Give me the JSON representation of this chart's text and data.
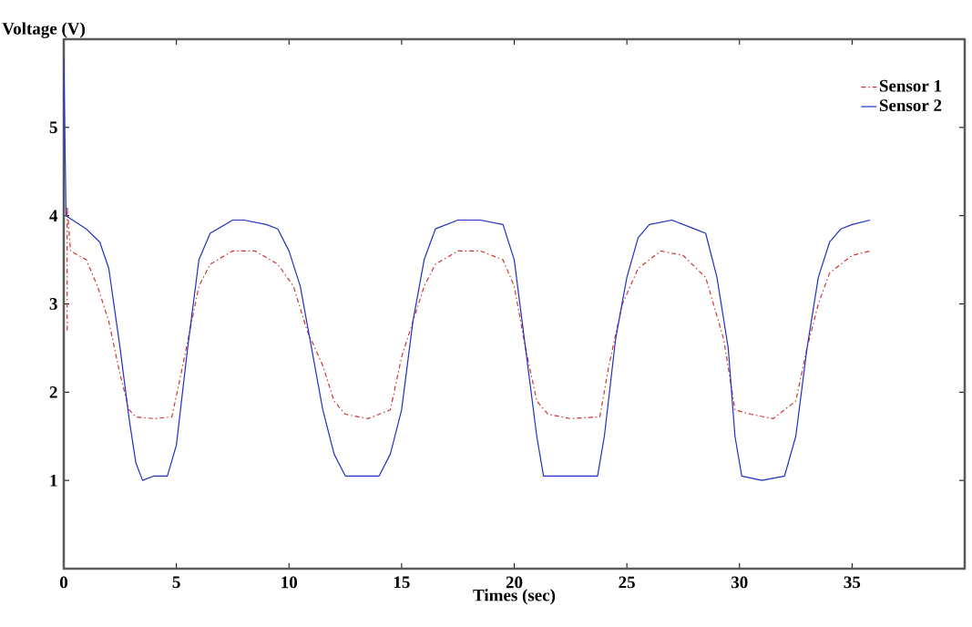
{
  "chart_data": {
    "type": "line",
    "xlabel": "Times (sec)",
    "ylabel": "Voltage (V)",
    "xlim": [
      0,
      40
    ],
    "ylim": [
      0,
      6
    ],
    "xticks": [
      0,
      5,
      10,
      15,
      20,
      25,
      30,
      35
    ],
    "yticks": [
      1,
      2,
      3,
      4,
      5
    ],
    "legend": "top right",
    "grid": false,
    "marker": "none",
    "series": [
      {
        "name": "Sensor 1",
        "color": "#d03030",
        "line_style": "dashdot",
        "x": [
          0.15,
          0.15,
          0.3,
          1,
          1.5,
          2,
          2.5,
          2.9,
          3.2,
          4,
          4.8,
          5.2,
          5.6,
          6,
          6.5,
          7.5,
          8.5,
          9.5,
          10.2,
          10.8,
          11.5,
          12,
          12.5,
          13.5,
          14.5,
          15,
          15.5,
          16,
          16.5,
          17.5,
          18.5,
          19.5,
          20,
          20.5,
          21,
          21.5,
          22.5,
          23.8,
          24.2,
          24.8,
          25.5,
          26.5,
          27.5,
          28.5,
          29.3,
          29.8,
          30.5,
          31.5,
          32.5,
          33,
          33.5,
          34,
          35,
          35.8
        ],
        "values": [
          2.7,
          4.1,
          3.6,
          3.5,
          3.2,
          2.8,
          2.2,
          1.8,
          1.72,
          1.7,
          1.72,
          2.2,
          2.7,
          3.2,
          3.45,
          3.6,
          3.6,
          3.45,
          3.2,
          2.7,
          2.3,
          1.9,
          1.75,
          1.7,
          1.8,
          2.4,
          2.8,
          3.2,
          3.45,
          3.6,
          3.6,
          3.5,
          3.2,
          2.5,
          1.9,
          1.75,
          1.7,
          1.72,
          2.3,
          3.0,
          3.4,
          3.6,
          3.55,
          3.3,
          2.6,
          1.8,
          1.75,
          1.7,
          1.9,
          2.5,
          3.0,
          3.35,
          3.55,
          3.6
        ]
      },
      {
        "name": "Sensor 2",
        "color": "#2030c0",
        "line_style": "solid",
        "x": [
          0,
          0.1,
          1,
          1.6,
          2,
          2.5,
          2.9,
          3.2,
          3.5,
          4,
          4.6,
          5,
          5.5,
          6,
          6.5,
          7.5,
          8,
          9,
          9.5,
          10,
          10.5,
          11,
          11.5,
          12,
          12.5,
          13,
          14,
          14.5,
          15,
          15.5,
          16,
          16.5,
          17.5,
          18.5,
          19.5,
          20,
          20.5,
          21,
          21.3,
          22,
          23,
          23.7,
          24,
          24.5,
          25,
          25.5,
          26,
          27,
          28,
          28.5,
          29,
          29.5,
          29.8,
          30.1,
          31,
          32,
          32.5,
          33,
          33.5,
          34,
          34.5,
          35,
          35.8
        ],
        "values": [
          5.8,
          4.0,
          3.85,
          3.7,
          3.4,
          2.5,
          1.7,
          1.2,
          1.0,
          1.05,
          1.05,
          1.4,
          2.5,
          3.5,
          3.8,
          3.95,
          3.95,
          3.9,
          3.85,
          3.6,
          3.2,
          2.5,
          1.8,
          1.3,
          1.05,
          1.05,
          1.05,
          1.3,
          1.8,
          2.8,
          3.5,
          3.85,
          3.95,
          3.95,
          3.9,
          3.5,
          2.5,
          1.5,
          1.05,
          1.05,
          1.05,
          1.05,
          1.5,
          2.6,
          3.3,
          3.75,
          3.9,
          3.95,
          3.85,
          3.8,
          3.3,
          2.5,
          1.5,
          1.05,
          1.0,
          1.05,
          1.5,
          2.5,
          3.3,
          3.7,
          3.85,
          3.9,
          3.95
        ]
      }
    ]
  }
}
